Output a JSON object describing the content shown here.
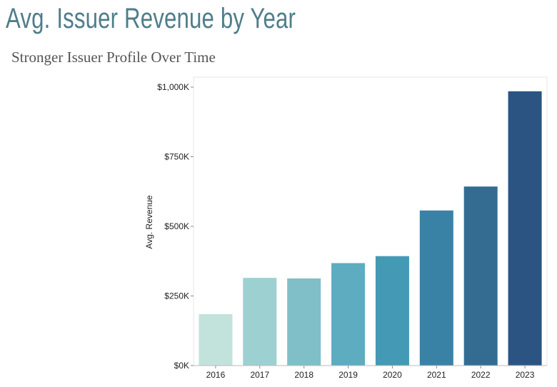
{
  "header": {
    "title": "Avg. Issuer Revenue by Year",
    "subtitle": "Stronger Issuer Profile Over Time"
  },
  "chart_data": {
    "type": "bar",
    "title": "Avg. Issuer Revenue by Year",
    "subtitle": "Stronger Issuer Profile Over Time",
    "xlabel": "",
    "ylabel": "Avg. Revenue",
    "categories": [
      "2016",
      "2017",
      "2018",
      "2019",
      "2020",
      "2021",
      "2022",
      "2023"
    ],
    "values": [
      185000,
      315000,
      313000,
      368000,
      393000,
      557000,
      643000,
      985000
    ],
    "ylim": [
      0,
      1000000
    ],
    "yticks": [
      0,
      250000,
      500000,
      750000,
      1000000
    ],
    "ytick_labels": [
      "$0K",
      "$250K",
      "$500K",
      "$750K",
      "$1,000K"
    ],
    "colors": [
      "#c2e3dc",
      "#9dd0d1",
      "#80bfc8",
      "#5eacc0",
      "#4499b5",
      "#3a82a5",
      "#346c91",
      "#2c5482"
    ],
    "grid": false,
    "legend": "none"
  }
}
